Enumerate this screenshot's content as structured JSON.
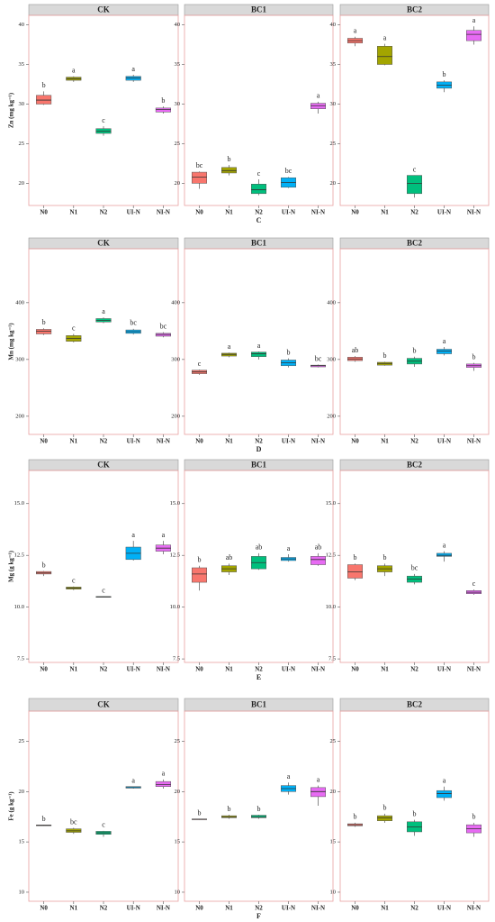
{
  "chart_data": [
    {
      "type": "box",
      "title": "CK",
      "ylabel": "Zn (mg kg⁻¹)",
      "categories": [
        "N0",
        "N1",
        "N2",
        "UI-N",
        "NI-N"
      ],
      "colors": [
        "#f8766d",
        "#a3a500",
        "#00bf7d",
        "#00b0f6",
        "#e76bf3"
      ],
      "ylim": [
        17.2,
        41.2
      ],
      "yticks": [
        20,
        25,
        30,
        35,
        40
      ],
      "boxes": [
        {
          "min": 29.9,
          "q1": 30,
          "median": 30.5,
          "q3": 31.1,
          "max": 31.6
        },
        {
          "min": 32.8,
          "q1": 33,
          "median": 33.2,
          "q3": 33.4,
          "max": 33.5
        },
        {
          "min": 26,
          "q1": 26.3,
          "median": 26.6,
          "q3": 26.9,
          "max": 27.2
        },
        {
          "min": 32.8,
          "q1": 33,
          "median": 33.3,
          "q3": 33.5,
          "max": 33.7
        },
        {
          "min": 28.8,
          "q1": 29,
          "median": 29.3,
          "q3": 29.5,
          "max": 29.7
        }
      ],
      "letters": [
        "b",
        "a",
        "c",
        "a",
        "b"
      ]
    },
    {
      "type": "box",
      "title": "BC1",
      "xlabel": "C",
      "categories": [
        "N0",
        "N1",
        "N2",
        "UI-N",
        "NI-N"
      ],
      "colors": [
        "#f8766d",
        "#a3a500",
        "#00bf7d",
        "#00b0f6",
        "#e76bf3"
      ],
      "ylim": [
        17.2,
        41.2
      ],
      "yticks": [
        20,
        25,
        30,
        35,
        40
      ],
      "boxes": [
        {
          "min": 19.3,
          "q1": 20,
          "median": 20.8,
          "q3": 21.4,
          "max": 21.5
        },
        {
          "min": 21,
          "q1": 21.3,
          "median": 21.6,
          "q3": 22,
          "max": 22.3
        },
        {
          "min": 18.5,
          "q1": 18.7,
          "median": 19.2,
          "q3": 19.9,
          "max": 20.5
        },
        {
          "min": 19.4,
          "q1": 19.5,
          "median": 20.1,
          "q3": 20.7,
          "max": 20.8
        },
        {
          "min": 28.8,
          "q1": 29.4,
          "median": 29.8,
          "q3": 30.1,
          "max": 30.3
        }
      ],
      "letters": [
        "bc",
        "b",
        "c",
        "bc",
        "a"
      ]
    },
    {
      "type": "box",
      "title": "BC2",
      "categories": [
        "N0",
        "N1",
        "N2",
        "UI-N",
        "NI-N"
      ],
      "colors": [
        "#f8766d",
        "#a3a500",
        "#00bf7d",
        "#00b0f6",
        "#e76bf3"
      ],
      "ylim": [
        17.2,
        41.2
      ],
      "yticks": [
        20,
        25,
        30,
        35,
        40
      ],
      "boxes": [
        {
          "min": 37.3,
          "q1": 37.7,
          "median": 38,
          "q3": 38.3,
          "max": 38.5
        },
        {
          "min": 34.9,
          "q1": 35,
          "median": 36,
          "q3": 37.3,
          "max": 37.6
        },
        {
          "min": 18.2,
          "q1": 18.7,
          "median": 20,
          "q3": 21,
          "max": 21
        },
        {
          "min": 31.5,
          "q1": 32,
          "median": 32.4,
          "q3": 32.8,
          "max": 33
        },
        {
          "min": 37.5,
          "q1": 38,
          "median": 38.8,
          "q3": 39.3,
          "max": 39.8
        }
      ],
      "letters": [
        "a",
        "a",
        "c",
        "b",
        "a"
      ]
    },
    {
      "type": "box",
      "title": "CK",
      "ylabel": "Mn (mg kg⁻¹)",
      "categories": [
        "N0",
        "N1",
        "N2",
        "UI-N",
        "NI-N"
      ],
      "colors": [
        "#f8766d",
        "#a3a500",
        "#00bf7d",
        "#00b0f6",
        "#e76bf3"
      ],
      "ylim": [
        168,
        495
      ],
      "yticks": [
        200,
        300,
        400
      ],
      "boxes": [
        {
          "min": 343,
          "q1": 345,
          "median": 350,
          "q3": 353,
          "max": 355
        },
        {
          "min": 330,
          "q1": 332,
          "median": 337,
          "q3": 342,
          "max": 345
        },
        {
          "min": 364,
          "q1": 366,
          "median": 369,
          "q3": 372,
          "max": 374
        },
        {
          "min": 344,
          "q1": 346,
          "median": 349,
          "q3": 352,
          "max": 354
        },
        {
          "min": 339,
          "q1": 341,
          "median": 344,
          "q3": 346,
          "max": 348
        }
      ],
      "letters": [
        "b",
        "c",
        "a",
        "bc",
        "bc"
      ]
    },
    {
      "type": "box",
      "title": "BC1",
      "xlabel": "D",
      "categories": [
        "N0",
        "N1",
        "N2",
        "UI-N",
        "NI-N"
      ],
      "colors": [
        "#f8766d",
        "#a3a500",
        "#00bf7d",
        "#00b0f6",
        "#e76bf3"
      ],
      "ylim": [
        168,
        495
      ],
      "yticks": [
        200,
        300,
        400
      ],
      "boxes": [
        {
          "min": 273,
          "q1": 275,
          "median": 278,
          "q3": 281,
          "max": 282
        },
        {
          "min": 304,
          "q1": 306,
          "median": 309,
          "q3": 311,
          "max": 312
        },
        {
          "min": 300,
          "q1": 305,
          "median": 310,
          "q3": 313,
          "max": 314
        },
        {
          "min": 286,
          "q1": 289,
          "median": 294,
          "q3": 299,
          "max": 302
        },
        {
          "min": 286,
          "q1": 287,
          "median": 289,
          "q3": 290,
          "max": 291
        }
      ],
      "letters": [
        "c",
        "a",
        "a",
        "b",
        "bc"
      ]
    },
    {
      "type": "box",
      "title": "BC2",
      "categories": [
        "N0",
        "N1",
        "N2",
        "UI-N",
        "NI-N"
      ],
      "colors": [
        "#f8766d",
        "#a3a500",
        "#00bf7d",
        "#00b0f6",
        "#e76bf3"
      ],
      "ylim": [
        168,
        495
      ],
      "yticks": [
        200,
        300,
        400
      ],
      "boxes": [
        {
          "min": 296,
          "q1": 298,
          "median": 301,
          "q3": 304,
          "max": 306
        },
        {
          "min": 289,
          "q1": 290,
          "median": 293,
          "q3": 295,
          "max": 296
        },
        {
          "min": 287,
          "q1": 292,
          "median": 297,
          "q3": 302,
          "max": 305
        },
        {
          "min": 307,
          "q1": 310,
          "median": 315,
          "q3": 318,
          "max": 322
        },
        {
          "min": 280,
          "q1": 286,
          "median": 289,
          "q3": 292,
          "max": 294
        }
      ],
      "letters": [
        "ab",
        "b",
        "b",
        "a",
        "b"
      ]
    },
    {
      "type": "box",
      "title": "CK",
      "ylabel": "Mg (g kg⁻¹)",
      "categories": [
        "N0",
        "N1",
        "N2",
        "UI-N",
        "NI-N"
      ],
      "colors": [
        "#f8766d",
        "#a3a500",
        "#00bf7d",
        "#00b0f6",
        "#e76bf3"
      ],
      "ylim": [
        7.33,
        16.6
      ],
      "yticks": [
        7.5,
        {
          "value": 10,
          "label": "10.0"
        },
        12.5,
        {
          "value": 15,
          "label": "15.0"
        }
      ],
      "boxes": [
        {
          "min": 11.5,
          "q1": 11.6,
          "median": 11.65,
          "q3": 11.72,
          "max": 11.75
        },
        {
          "min": 10.82,
          "q1": 10.87,
          "median": 10.92,
          "q3": 10.97,
          "max": 11
        },
        {
          "min": 10.48,
          "q1": 10.49,
          "median": 10.5,
          "q3": 10.51,
          "max": 10.52
        },
        {
          "min": 12.25,
          "q1": 12.3,
          "median": 12.6,
          "q3": 12.9,
          "max": 13.2
        },
        {
          "min": 12.55,
          "q1": 12.7,
          "median": 12.85,
          "q3": 13,
          "max": 13.2
        }
      ],
      "letters": [
        "b",
        "c",
        "c",
        "a",
        "a"
      ]
    },
    {
      "type": "box",
      "title": "BC1",
      "xlabel": "E",
      "categories": [
        "N0",
        "N1",
        "N2",
        "UI-N",
        "NI-N"
      ],
      "colors": [
        "#f8766d",
        "#a3a500",
        "#00bf7d",
        "#00b0f6",
        "#e76bf3"
      ],
      "ylim": [
        7.33,
        16.6
      ],
      "yticks": [
        7.5,
        {
          "value": 10,
          "label": "10.0"
        },
        12.5,
        {
          "value": 15,
          "label": "15.0"
        }
      ],
      "boxes": [
        {
          "min": 10.8,
          "q1": 11.2,
          "median": 11.6,
          "q3": 11.9,
          "max": 12
        },
        {
          "min": 11.55,
          "q1": 11.7,
          "median": 11.85,
          "q3": 12,
          "max": 12.1
        },
        {
          "min": 11.8,
          "q1": 11.85,
          "median": 12.15,
          "q3": 12.45,
          "max": 12.6
        },
        {
          "min": 12.2,
          "q1": 12.25,
          "median": 12.33,
          "q3": 12.4,
          "max": 12.55
        },
        {
          "min": 12,
          "q1": 12.05,
          "median": 12.3,
          "q3": 12.45,
          "max": 12.6
        }
      ],
      "letters": [
        "b",
        "ab",
        "ab",
        "a",
        "ab"
      ]
    },
    {
      "type": "box",
      "title": "BC2",
      "categories": [
        "N0",
        "N1",
        "N2",
        "UI-N",
        "NI-N"
      ],
      "colors": [
        "#f8766d",
        "#a3a500",
        "#00bf7d",
        "#00b0f6",
        "#e76bf3"
      ],
      "ylim": [
        7.33,
        16.6
      ],
      "yticks": [
        7.5,
        {
          "value": 10,
          "label": "10.0"
        },
        12.5,
        {
          "value": 15,
          "label": "15.0"
        }
      ],
      "boxes": [
        {
          "min": 11.3,
          "q1": 11.4,
          "median": 11.7,
          "q3": 12.05,
          "max": 12.1
        },
        {
          "min": 11.5,
          "q1": 11.7,
          "median": 11.85,
          "q3": 12,
          "max": 12.1
        },
        {
          "min": 11.1,
          "q1": 11.2,
          "median": 11.35,
          "q3": 11.5,
          "max": 11.6
        },
        {
          "min": 12.2,
          "q1": 12.45,
          "median": 12.5,
          "q3": 12.6,
          "max": 12.7
        },
        {
          "min": 10.6,
          "q1": 10.65,
          "median": 10.72,
          "q3": 10.8,
          "max": 10.85
        }
      ],
      "letters": [
        "b",
        "b",
        "bc",
        "a",
        "c"
      ]
    },
    {
      "type": "box",
      "title": "CK",
      "ylabel": "Fe (g kg⁻¹)",
      "categories": [
        "N0",
        "N1",
        "N2",
        "UI-N",
        "NI-N"
      ],
      "colors": [
        "#f8766d",
        "#a3a500",
        "#00bf7d",
        "#00b0f6",
        "#e76bf3"
      ],
      "ylim": [
        9.1,
        28
      ],
      "yticks": [
        10,
        15,
        20,
        25
      ],
      "boxes": [
        {
          "min": 16.6,
          "q1": 16.62,
          "median": 16.65,
          "q3": 16.68,
          "max": 16.7
        },
        {
          "min": 15.8,
          "q1": 15.95,
          "median": 16.1,
          "q3": 16.3,
          "max": 16.4
        },
        {
          "min": 15.5,
          "q1": 15.75,
          "median": 15.9,
          "q3": 16.05,
          "max": 16.1
        },
        {
          "min": 20.3,
          "q1": 20.35,
          "median": 20.4,
          "q3": 20.5,
          "max": 20.5
        },
        {
          "min": 20.3,
          "q1": 20.5,
          "median": 20.7,
          "q3": 21,
          "max": 21.2
        }
      ],
      "letters": [
        "b",
        "bc",
        "c",
        "a",
        "a"
      ]
    },
    {
      "type": "box",
      "title": "BC1",
      "xlabel": "F",
      "categories": [
        "N0",
        "N1",
        "N2",
        "UI-N",
        "NI-N"
      ],
      "colors": [
        "#f8766d",
        "#a3a500",
        "#00bf7d",
        "#00b0f6",
        "#e76bf3"
      ],
      "ylim": [
        9.1,
        28
      ],
      "yticks": [
        10,
        15,
        20,
        25
      ],
      "boxes": [
        {
          "min": 17.2,
          "q1": 17.22,
          "median": 17.25,
          "q3": 17.28,
          "max": 17.3
        },
        {
          "min": 17.3,
          "q1": 17.4,
          "median": 17.5,
          "q3": 17.6,
          "max": 17.7
        },
        {
          "min": 17.3,
          "q1": 17.4,
          "median": 17.5,
          "q3": 17.65,
          "max": 17.7
        },
        {
          "min": 19.7,
          "q1": 20,
          "median": 20.3,
          "q3": 20.6,
          "max": 20.9
        },
        {
          "min": 18.6,
          "q1": 19.5,
          "median": 20,
          "q3": 20.4,
          "max": 20.6
        }
      ],
      "letters": [
        "b",
        "b",
        "b",
        "a",
        "a"
      ]
    },
    {
      "type": "box",
      "title": "BC2",
      "categories": [
        "N0",
        "N1",
        "N2",
        "UI-N",
        "NI-N"
      ],
      "colors": [
        "#f8766d",
        "#a3a500",
        "#00bf7d",
        "#00b0f6",
        "#e76bf3"
      ],
      "ylim": [
        9.1,
        28
      ],
      "yticks": [
        10,
        15,
        20,
        25
      ],
      "boxes": [
        {
          "min": 16.5,
          "q1": 16.6,
          "median": 16.7,
          "q3": 16.8,
          "max": 16.9
        },
        {
          "min": 16.9,
          "q1": 17.1,
          "median": 17.4,
          "q3": 17.6,
          "max": 17.8
        },
        {
          "min": 15.6,
          "q1": 16,
          "median": 16.5,
          "q3": 17,
          "max": 17.2
        },
        {
          "min": 19.1,
          "q1": 19.4,
          "median": 19.8,
          "q3": 20.1,
          "max": 20.5
        },
        {
          "min": 15.5,
          "q1": 15.9,
          "median": 16.3,
          "q3": 16.7,
          "max": 16.9
        }
      ],
      "letters": [
        "b",
        "b",
        "b",
        "a",
        "b"
      ]
    }
  ]
}
